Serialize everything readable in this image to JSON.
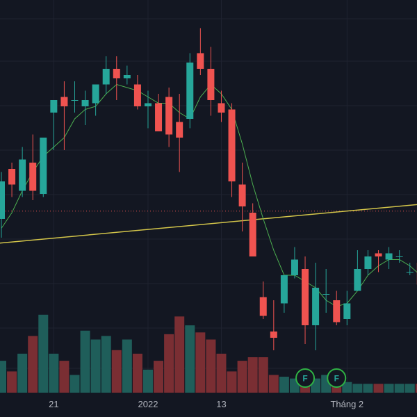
{
  "theme": {
    "background": "#131722",
    "grid": "#1f2330",
    "up": "#26a69a",
    "down": "#ef5350",
    "volume_up": "#1f5e5a",
    "volume_down": "#7a2e33",
    "ma_line": "#4caf50",
    "trend_line": "#d4c64a",
    "price_line": "#ef5350",
    "marker": "#2fb344"
  },
  "chart_data": {
    "type": "candlestick",
    "title": "",
    "xlabel": "",
    "ylabel": "",
    "x_ticks": [
      {
        "label": "21",
        "index": 5
      },
      {
        "label": "2022",
        "index": 14
      },
      {
        "label": "13",
        "index": 21
      },
      {
        "label": "Tháng 2",
        "index": 33
      }
    ],
    "ylim": [
      0,
      100
    ],
    "grid": true,
    "candles": [
      {
        "o": 40,
        "h": 55,
        "l": 34,
        "c": 52
      },
      {
        "o": 56,
        "h": 58,
        "l": 47,
        "c": 51
      },
      {
        "o": 49,
        "h": 63,
        "l": 47,
        "c": 59
      },
      {
        "o": 58,
        "h": 67,
        "l": 46,
        "c": 49
      },
      {
        "o": 48,
        "h": 65,
        "l": 47,
        "c": 66
      },
      {
        "o": 74,
        "h": 78,
        "l": 62,
        "c": 78
      },
      {
        "o": 79,
        "h": 84,
        "l": 62,
        "c": 76
      },
      {
        "o": 78,
        "h": 84,
        "l": 74,
        "c": 78
      },
      {
        "o": 76,
        "h": 81,
        "l": 70,
        "c": 78
      },
      {
        "o": 77,
        "h": 83,
        "l": 73,
        "c": 83
      },
      {
        "o": 83,
        "h": 92,
        "l": 80,
        "c": 88
      },
      {
        "o": 88,
        "h": 92,
        "l": 78,
        "c": 85
      },
      {
        "o": 85,
        "h": 89,
        "l": 83,
        "c": 86
      },
      {
        "o": 83,
        "h": 86,
        "l": 75,
        "c": 76
      },
      {
        "o": 76,
        "h": 81,
        "l": 69,
        "c": 77
      },
      {
        "o": 77,
        "h": 80,
        "l": 68,
        "c": 68
      },
      {
        "o": 79,
        "h": 82,
        "l": 63,
        "c": 67
      },
      {
        "o": 71,
        "h": 80,
        "l": 55,
        "c": 66
      },
      {
        "o": 72,
        "h": 93,
        "l": 69,
        "c": 90
      },
      {
        "o": 93,
        "h": 101,
        "l": 86,
        "c": 88
      },
      {
        "o": 88,
        "h": 95,
        "l": 73,
        "c": 78
      },
      {
        "o": 77,
        "h": 81,
        "l": 71,
        "c": 74
      },
      {
        "o": 75,
        "h": 77,
        "l": 47,
        "c": 52
      },
      {
        "o": 51,
        "h": 58,
        "l": 36,
        "c": 44
      },
      {
        "o": 42,
        "h": 45,
        "l": 28,
        "c": 28
      },
      {
        "o": 15,
        "h": 20,
        "l": 8,
        "c": 9
      },
      {
        "o": 4,
        "h": 14,
        "l": -2,
        "c": 2
      },
      {
        "o": 13,
        "h": 22,
        "l": 10,
        "c": 22
      },
      {
        "o": 22,
        "h": 31,
        "l": 21,
        "c": 27
      },
      {
        "o": 24,
        "h": 28,
        "l": 0,
        "c": 6
      },
      {
        "o": 6,
        "h": 26,
        "l": -2,
        "c": 18
      },
      {
        "o": 16,
        "h": 24,
        "l": 10,
        "c": 16
      },
      {
        "o": 14,
        "h": 17,
        "l": 6,
        "c": 7
      },
      {
        "o": 8,
        "h": 17,
        "l": 6,
        "c": 13
      },
      {
        "o": 17,
        "h": 30,
        "l": 17,
        "c": 24
      },
      {
        "o": 24,
        "h": 30,
        "l": 22,
        "c": 28
      },
      {
        "o": 29,
        "h": 30,
        "l": 23,
        "c": 28
      },
      {
        "o": 27,
        "h": 31,
        "l": 24,
        "c": 29
      },
      {
        "o": 28,
        "h": 30,
        "l": 26,
        "c": 28
      },
      {
        "o": 23,
        "h": 26,
        "l": 22,
        "c": 23
      },
      {
        "o": 26,
        "h": 28,
        "l": 18,
        "c": 19
      }
    ],
    "volume": [
      18,
      12,
      22,
      32,
      44,
      22,
      18,
      10,
      35,
      30,
      32,
      24,
      30,
      22,
      13,
      18,
      33,
      43,
      38,
      34,
      30,
      22,
      12,
      18,
      20,
      20,
      10,
      9,
      8,
      7,
      8,
      10,
      7,
      6,
      5,
      5,
      5,
      5,
      5,
      5,
      5
    ],
    "moving_average": [
      37,
      42,
      49,
      55,
      60,
      63,
      66,
      72,
      75,
      76,
      80,
      83,
      82,
      81,
      79,
      77,
      77,
      74,
      72,
      79,
      83,
      80,
      75,
      64,
      51,
      40,
      30,
      22,
      22,
      20,
      18,
      14,
      12,
      13,
      17,
      22,
      25,
      27,
      27,
      25,
      22
    ],
    "trend_line": {
      "from": {
        "index": -1,
        "value": 32
      },
      "to": {
        "index": 41,
        "value": 45
      }
    },
    "price_line": {
      "value": 42.5,
      "style": "dotted"
    },
    "event_markers": [
      {
        "label": "F",
        "index": 29
      },
      {
        "label": "F",
        "index": 32
      }
    ]
  }
}
